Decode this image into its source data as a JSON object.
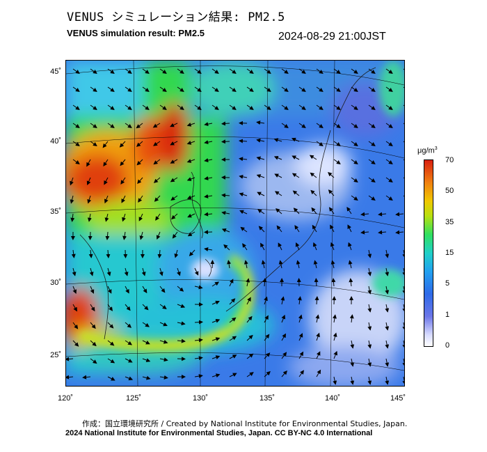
{
  "header": {
    "title_jp": "VENUS シミュレーション結果: PM2.5",
    "title_en": "VENUS simulation result: PM2.5",
    "timestamp": "2024-08-29 21:00JST"
  },
  "axes": {
    "lat_labels": [
      "45˚",
      "40˚",
      "35˚",
      "30˚",
      "25˚"
    ],
    "lon_labels": [
      "120˚",
      "125˚",
      "130˚",
      "135˚",
      "140˚",
      "145˚"
    ]
  },
  "colorbar": {
    "unit_base": "μg/m",
    "unit_exp": "3",
    "ticks": [
      "70",
      "50",
      "35",
      "15",
      "5",
      "1",
      "0"
    ],
    "colors": [
      "#ffffff",
      "#6c76e8",
      "#22a0f0",
      "#30e060",
      "#f0c800",
      "#d82010"
    ]
  },
  "footer": {
    "credit_line": "作成：国立環境研究所 / Created by National Institute for Environmental Studies, Japan.",
    "copyright_line": "2024 National Institute for Environmental Studies, Japan. CC BY-NC 4.0 International"
  }
}
